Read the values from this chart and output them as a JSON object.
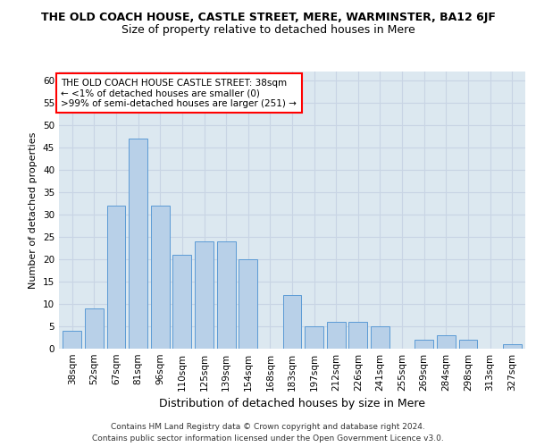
{
  "title": "THE OLD COACH HOUSE, CASTLE STREET, MERE, WARMINSTER, BA12 6JF",
  "subtitle": "Size of property relative to detached houses in Mere",
  "xlabel": "Distribution of detached houses by size in Mere",
  "ylabel": "Number of detached properties",
  "categories": [
    "38sqm",
    "52sqm",
    "67sqm",
    "81sqm",
    "96sqm",
    "110sqm",
    "125sqm",
    "139sqm",
    "154sqm",
    "168sqm",
    "183sqm",
    "197sqm",
    "212sqm",
    "226sqm",
    "241sqm",
    "255sqm",
    "269sqm",
    "284sqm",
    "298sqm",
    "313sqm",
    "327sqm"
  ],
  "values": [
    4,
    9,
    32,
    47,
    32,
    21,
    24,
    24,
    20,
    0,
    12,
    5,
    6,
    6,
    5,
    0,
    2,
    3,
    2,
    0,
    1
  ],
  "bar_color": "#b8d0e8",
  "bar_edge_color": "#5b9bd5",
  "annotation_text": "THE OLD COACH HOUSE CASTLE STREET: 38sqm\n← <1% of detached houses are smaller (0)\n>99% of semi-detached houses are larger (251) →",
  "annotation_box_edge_color": "red",
  "ylim": [
    0,
    62
  ],
  "yticks": [
    0,
    5,
    10,
    15,
    20,
    25,
    30,
    35,
    40,
    45,
    50,
    55,
    60
  ],
  "grid_color": "#c8d4e4",
  "background_color": "#dce8f0",
  "footnote1": "Contains HM Land Registry data © Crown copyright and database right 2024.",
  "footnote2": "Contains public sector information licensed under the Open Government Licence v3.0.",
  "title_fontsize": 9,
  "subtitle_fontsize": 9,
  "tick_fontsize": 7.5,
  "ylabel_fontsize": 8,
  "xlabel_fontsize": 9
}
